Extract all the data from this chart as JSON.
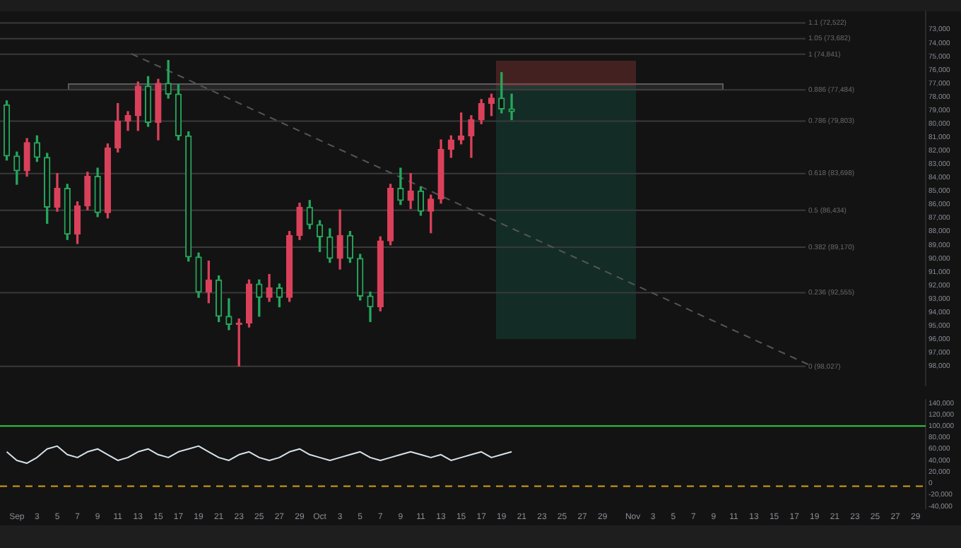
{
  "chart_data": [
    {
      "type": "candlestick",
      "x": [
        "--08-31",
        "--09-01",
        "--09-02",
        "--09-03",
        "--09-04",
        "--09-05",
        "--09-06",
        "--09-07",
        "--09-08",
        "--09-09",
        "--09-10",
        "--09-11",
        "--09-12",
        "--09-13",
        "--09-14",
        "--09-15",
        "--09-16",
        "--09-17",
        "--09-18",
        "--09-19",
        "--09-20",
        "--09-21",
        "--09-22",
        "--09-23",
        "--09-24",
        "--09-25",
        "--09-26",
        "--09-27",
        "--09-28",
        "--09-29",
        "--09-30",
        "--10-01",
        "--10-02",
        "--10-03",
        "--10-04",
        "--10-05",
        "--10-06",
        "--10-07",
        "--10-08",
        "--10-09",
        "--10-10",
        "--10-11",
        "--10-12",
        "--10-13",
        "--10-14",
        "--10-15",
        "--10-16",
        "--10-17",
        "--10-18",
        "--10-19",
        "--10-20"
      ],
      "ohlc": [
        [
          78600,
          82700,
          78300,
          82400
        ],
        [
          82400,
          84500,
          82100,
          83500
        ],
        [
          83500,
          83900,
          81100,
          81400
        ],
        [
          81400,
          82800,
          80900,
          82500
        ],
        [
          82500,
          87400,
          82200,
          86200
        ],
        [
          86200,
          86500,
          83700,
          84800
        ],
        [
          84800,
          88600,
          84500,
          88200
        ],
        [
          88200,
          88900,
          85800,
          86100
        ],
        [
          86100,
          86400,
          83600,
          83900
        ],
        [
          83900,
          86900,
          83300,
          86600
        ],
        [
          86600,
          87000,
          81500,
          81800
        ],
        [
          81800,
          82100,
          78500,
          79800
        ],
        [
          79800,
          80500,
          79100,
          79400
        ],
        [
          79400,
          80500,
          76900,
          77200
        ],
        [
          77200,
          80200,
          76500,
          79900
        ],
        [
          79900,
          81200,
          76700,
          77000
        ],
        [
          77000,
          78100,
          75300,
          77800
        ],
        [
          77800,
          81200,
          77100,
          80900
        ],
        [
          80900,
          90200,
          80600,
          89900
        ],
        [
          89900,
          92900,
          89600,
          92500
        ],
        [
          92500,
          93300,
          90200,
          91600
        ],
        [
          91600,
          94700,
          91300,
          94300
        ],
        [
          94300,
          95300,
          93000,
          94900
        ],
        [
          94900,
          98000,
          94500,
          94800
        ],
        [
          94800,
          95100,
          91600,
          91900
        ],
        [
          91900,
          94300,
          91600,
          92900
        ],
        [
          92900,
          93200,
          91200,
          92200
        ],
        [
          92200,
          93600,
          91900,
          92900
        ],
        [
          92900,
          93200,
          88000,
          88300
        ],
        [
          88300,
          88600,
          85900,
          86200
        ],
        [
          86200,
          87800,
          85700,
          87500
        ],
        [
          87500,
          89500,
          87200,
          88400
        ],
        [
          88400,
          90300,
          87800,
          90000
        ],
        [
          90000,
          90800,
          86400,
          88300
        ],
        [
          88300,
          90300,
          88000,
          90000
        ],
        [
          90000,
          93100,
          89700,
          92800
        ],
        [
          92800,
          94700,
          92500,
          93600
        ],
        [
          93600,
          93900,
          88400,
          88700
        ],
        [
          88700,
          89000,
          84500,
          84800
        ],
        [
          84800,
          86000,
          83300,
          85700
        ],
        [
          85700,
          86300,
          83700,
          85000
        ],
        [
          85000,
          86800,
          84700,
          86500
        ],
        [
          86500,
          88100,
          85300,
          85600
        ],
        [
          85600,
          85900,
          81200,
          81900
        ],
        [
          81900,
          82500,
          80900,
          81200
        ],
        [
          81200,
          81500,
          79200,
          80900
        ],
        [
          80900,
          82500,
          79400,
          79700
        ],
        [
          79700,
          80000,
          78200,
          78500
        ],
        [
          78500,
          79400,
          77800,
          78100
        ],
        [
          78100,
          79200,
          76200,
          78900
        ],
        [
          78900,
          79700,
          77800,
          79100
        ]
      ],
      "series": [
        {
          "type": "line",
          "x": [
            "--09-12T08:00",
            "--11-18T17:00"
          ],
          "values": [
            74800,
            98000
          ],
          "color": "#555555",
          "line_style": "dashed"
        }
      ],
      "xlim": [
        "--08-30T08:00",
        "--11-30"
      ],
      "xticks": [
        {
          "value": "--09-01",
          "label": "Sep"
        },
        {
          "value": "--09-03",
          "label": "3"
        },
        {
          "value": "--09-05",
          "label": "5"
        },
        {
          "value": "--09-07",
          "label": "7"
        },
        {
          "value": "--09-09",
          "label": "9"
        },
        {
          "value": "--09-11",
          "label": "11"
        },
        {
          "value": "--09-13",
          "label": "13"
        },
        {
          "value": "--09-15",
          "label": "15"
        },
        {
          "value": "--09-17",
          "label": "17"
        },
        {
          "value": "--09-19",
          "label": "19"
        },
        {
          "value": "--09-21",
          "label": "21"
        },
        {
          "value": "--09-23",
          "label": "23"
        },
        {
          "value": "--09-25",
          "label": "25"
        },
        {
          "value": "--09-27",
          "label": "27"
        },
        {
          "value": "--09-29",
          "label": "29"
        },
        {
          "value": "--10-01",
          "label": "Oct"
        },
        {
          "value": "--10-03",
          "label": "3"
        },
        {
          "value": "--10-05",
          "label": "5"
        },
        {
          "value": "--10-07",
          "label": "7"
        },
        {
          "value": "--10-09",
          "label": "9"
        },
        {
          "value": "--10-11",
          "label": "11"
        },
        {
          "value": "--10-13",
          "label": "13"
        },
        {
          "value": "--10-15",
          "label": "15"
        },
        {
          "value": "--10-17",
          "label": "17"
        },
        {
          "value": "--10-19",
          "label": "19"
        },
        {
          "value": "--10-21",
          "label": "21"
        },
        {
          "value": "--10-23",
          "label": "23"
        },
        {
          "value": "--10-25",
          "label": "25"
        },
        {
          "value": "--10-27",
          "label": "27"
        },
        {
          "value": "--10-29",
          "label": "29"
        },
        {
          "value": "--11-01",
          "label": "Nov"
        },
        {
          "value": "--11-03",
          "label": "3"
        },
        {
          "value": "--11-05",
          "label": "5"
        },
        {
          "value": "--11-07",
          "label": "7"
        },
        {
          "value": "--11-09",
          "label": "9"
        },
        {
          "value": "--11-11",
          "label": "11"
        },
        {
          "value": "--11-13",
          "label": "13"
        },
        {
          "value": "--11-15",
          "label": "15"
        },
        {
          "value": "--11-17",
          "label": "17"
        },
        {
          "value": "--11-19",
          "label": "19"
        },
        {
          "value": "--11-21",
          "label": "21"
        },
        {
          "value": "--11-23",
          "label": "23"
        },
        {
          "value": "--11-25",
          "label": "25"
        },
        {
          "value": "--11-27",
          "label": "27"
        },
        {
          "value": "--11-29",
          "label": "29"
        }
      ],
      "ylim": [
        99450,
        71650
      ],
      "yticks": [
        {
          "value": 73000,
          "label": "73,000"
        },
        {
          "value": 74000,
          "label": "74,000"
        },
        {
          "value": 75000,
          "label": "75,000"
        },
        {
          "value": 76000,
          "label": "76,000"
        },
        {
          "value": 77000,
          "label": "77,000"
        },
        {
          "value": 78000,
          "label": "78,000"
        },
        {
          "value": 79000,
          "label": "79,000"
        },
        {
          "value": 80000,
          "label": "80,000"
        },
        {
          "value": 81000,
          "label": "81,000"
        },
        {
          "value": 82000,
          "label": "82,000"
        },
        {
          "value": 83000,
          "label": "83,000"
        },
        {
          "value": 84000,
          "label": "84,000"
        },
        {
          "value": 85000,
          "label": "85,000"
        },
        {
          "value": 86000,
          "label": "86,000"
        },
        {
          "value": 87000,
          "label": "87,000"
        },
        {
          "value": 88000,
          "label": "88,000"
        },
        {
          "value": 89000,
          "label": "89,000"
        },
        {
          "value": 90000,
          "label": "90,000"
        },
        {
          "value": 91000,
          "label": "91,000"
        },
        {
          "value": 92000,
          "label": "92,000"
        },
        {
          "value": 93000,
          "label": "93,000"
        },
        {
          "value": 94000,
          "label": "94,000"
        },
        {
          "value": 95000,
          "label": "95,000"
        },
        {
          "value": 96000,
          "label": "96,000"
        },
        {
          "value": 97000,
          "label": "97,000"
        },
        {
          "value": 98000,
          "label": "98,000"
        }
      ],
      "tick_labels": "y",
      "ref_lines": [
        {
          "axis": "y",
          "value": 72522,
          "label": "1.1 (72,522)",
          "color": "#3a3a3a"
        },
        {
          "axis": "y",
          "value": 73682,
          "label": "1.05 (73,682)",
          "color": "#3a3a3a"
        },
        {
          "axis": "y",
          "value": 74841,
          "label": "1 (74,841)",
          "color": "#3a3a3a"
        },
        {
          "axis": "y",
          "value": 77484,
          "label": "0.886 (77,484)",
          "color": "#3a3a3a"
        },
        {
          "axis": "y",
          "value": 79803,
          "label": "0.786 (79,803)",
          "color": "#3a3a3a"
        },
        {
          "axis": "y",
          "value": 83698,
          "label": "0.618 (83,698)",
          "color": "#3a3a3a"
        },
        {
          "axis": "y",
          "value": 86434,
          "label": "0.5 (86,434)",
          "color": "#3a3a3a"
        },
        {
          "axis": "y",
          "value": 89170,
          "label": "0.382 (89,170)",
          "color": "#3a3a3a"
        },
        {
          "axis": "y",
          "value": 92555,
          "label": "0.236 (92,555)",
          "color": "#3a3a3a"
        },
        {
          "axis": "y",
          "value": 98027,
          "label": "0 (98,027)",
          "color": "#3a3a3a"
        }
      ]
    },
    {
      "type": "line",
      "x": [
        "--08-31",
        "--09-01",
        "--09-02",
        "--09-03",
        "--09-04",
        "--09-05",
        "--09-06",
        "--09-07",
        "--09-08",
        "--09-09",
        "--09-10",
        "--09-11",
        "--09-12",
        "--09-13",
        "--09-14",
        "--09-15",
        "--09-16",
        "--09-17",
        "--09-18",
        "--09-19",
        "--09-20",
        "--09-21",
        "--09-22",
        "--09-23",
        "--09-24",
        "--09-25",
        "--09-26",
        "--09-27",
        "--09-28",
        "--09-29",
        "--09-30",
        "--10-01",
        "--10-02",
        "--10-03",
        "--10-04",
        "--10-05",
        "--10-06",
        "--10-07",
        "--10-08",
        "--10-09",
        "--10-10",
        "--10-11",
        "--10-12",
        "--10-13",
        "--10-14",
        "--10-15",
        "--10-16",
        "--10-17",
        "--10-18",
        "--10-19",
        "--10-20"
      ],
      "series": [
        {
          "color": "#d7e3ea",
          "values": [
            55000,
            40000,
            35000,
            45000,
            60000,
            65000,
            50000,
            45000,
            55000,
            60000,
            50000,
            40000,
            45000,
            55000,
            60000,
            50000,
            45000,
            55000,
            60000,
            65000,
            55000,
            45000,
            40000,
            50000,
            55000,
            45000,
            40000,
            45000,
            55000,
            60000,
            50000,
            45000,
            40000,
            45000,
            50000,
            55000,
            45000,
            40000,
            45000,
            50000,
            55000,
            50000,
            45000,
            50000,
            40000,
            45000,
            50000,
            55000,
            45000,
            50000,
            55000
          ]
        }
      ],
      "xlim": [
        "--08-30T08:00",
        "--11-30"
      ],
      "xticks": [
        {
          "value": "--09-01",
          "label": "Sep"
        },
        {
          "value": "--09-03",
          "label": "3"
        },
        {
          "value": "--09-05",
          "label": "5"
        },
        {
          "value": "--09-07",
          "label": "7"
        },
        {
          "value": "--09-09",
          "label": "9"
        },
        {
          "value": "--09-11",
          "label": "11"
        },
        {
          "value": "--09-13",
          "label": "13"
        },
        {
          "value": "--09-15",
          "label": "15"
        },
        {
          "value": "--09-17",
          "label": "17"
        },
        {
          "value": "--09-19",
          "label": "19"
        },
        {
          "value": "--09-21",
          "label": "21"
        },
        {
          "value": "--09-23",
          "label": "23"
        },
        {
          "value": "--09-25",
          "label": "25"
        },
        {
          "value": "--09-27",
          "label": "27"
        },
        {
          "value": "--09-29",
          "label": "29"
        },
        {
          "value": "--10-01",
          "label": "Oct"
        },
        {
          "value": "--10-03",
          "label": "3"
        },
        {
          "value": "--10-05",
          "label": "5"
        },
        {
          "value": "--10-07",
          "label": "7"
        },
        {
          "value": "--10-09",
          "label": "9"
        },
        {
          "value": "--10-11",
          "label": "11"
        },
        {
          "value": "--10-13",
          "label": "13"
        },
        {
          "value": "--10-15",
          "label": "15"
        },
        {
          "value": "--10-17",
          "label": "17"
        },
        {
          "value": "--10-19",
          "label": "19"
        },
        {
          "value": "--10-21",
          "label": "21"
        },
        {
          "value": "--10-23",
          "label": "23"
        },
        {
          "value": "--10-25",
          "label": "25"
        },
        {
          "value": "--10-27",
          "label": "27"
        },
        {
          "value": "--10-29",
          "label": "29"
        },
        {
          "value": "--11-01",
          "label": "Nov"
        },
        {
          "value": "--11-03",
          "label": "3"
        },
        {
          "value": "--11-05",
          "label": "5"
        },
        {
          "value": "--11-07",
          "label": "7"
        },
        {
          "value": "--11-09",
          "label": "9"
        },
        {
          "value": "--11-11",
          "label": "11"
        },
        {
          "value": "--11-13",
          "label": "13"
        },
        {
          "value": "--11-15",
          "label": "15"
        },
        {
          "value": "--11-17",
          "label": "17"
        },
        {
          "value": "--11-19",
          "label": "19"
        },
        {
          "value": "--11-21",
          "label": "21"
        },
        {
          "value": "--11-23",
          "label": "23"
        },
        {
          "value": "--11-25",
          "label": "25"
        },
        {
          "value": "--11-27",
          "label": "27"
        },
        {
          "value": "--11-29",
          "label": "29"
        }
      ],
      "ylim": [
        -44000,
        146000
      ],
      "yticks": [
        {
          "value": -40000,
          "label": "-40,000"
        },
        {
          "value": -20000,
          "label": "-20,000"
        },
        0,
        {
          "value": 20000,
          "label": "20,000"
        },
        {
          "value": 40000,
          "label": "40,000"
        },
        {
          "value": 60000,
          "label": "60,000"
        },
        {
          "value": 80000,
          "label": "80,000"
        },
        {
          "value": 100000,
          "label": "100,000"
        },
        {
          "value": 120000,
          "label": "120,000"
        },
        {
          "value": 140000,
          "label": "140,000"
        }
      ],
      "ref_lines": [
        {
          "axis": "y",
          "value": 100000,
          "color": "#2ecc40"
        },
        {
          "axis": "y",
          "value": -5000,
          "color": "#d4a017",
          "line_style": "dashed"
        }
      ]
    }
  ]
}
